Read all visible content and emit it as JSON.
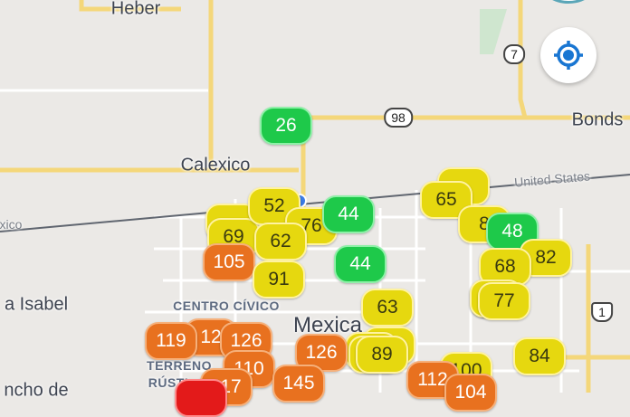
{
  "map": {
    "place_labels": [
      "Heber",
      "Calexico",
      "Bonds",
      "a Isabel",
      "Mexica",
      "TERRENO",
      "RÚSTI",
      "CENTRO CÍVICO",
      "ncho de",
      "xico"
    ],
    "border_label": "United States",
    "route_shields": [
      "7",
      "98",
      "1"
    ]
  },
  "aqi_colors": {
    "good": "#1ec94a",
    "moderate": "#e6d80f",
    "unhealthy_sensitive": "#e8711f",
    "unhealthy": "#e31a1a"
  },
  "markers": [
    {
      "value": "",
      "level": "moderate"
    },
    {
      "value": "",
      "level": "moderate"
    },
    {
      "value": "69",
      "level": "moderate"
    },
    {
      "value": "",
      "level": "moderate"
    },
    {
      "value": "26",
      "level": "good"
    },
    {
      "value": "52",
      "level": "moderate"
    },
    {
      "value": "76",
      "level": "moderate"
    },
    {
      "value": "44",
      "level": "good"
    },
    {
      "value": "62",
      "level": "moderate"
    },
    {
      "value": "105",
      "level": "unhealthy_sensitive"
    },
    {
      "value": "91",
      "level": "moderate"
    },
    {
      "value": "44",
      "level": "good"
    },
    {
      "value": "63",
      "level": "moderate"
    },
    {
      "value": "",
      "level": "moderate"
    },
    {
      "value": "65",
      "level": "moderate"
    },
    {
      "value": "8",
      "level": "moderate"
    },
    {
      "value": "48",
      "level": "good"
    },
    {
      "value": "82",
      "level": "moderate"
    },
    {
      "value": "68",
      "level": "moderate"
    },
    {
      "value": "",
      "level": "moderate"
    },
    {
      "value": "77",
      "level": "moderate"
    },
    {
      "value": "84",
      "level": "moderate"
    },
    {
      "value": "100",
      "level": "moderate"
    },
    {
      "value": "",
      "level": "moderate"
    },
    {
      "value": "",
      "level": "moderate"
    },
    {
      "value": "89",
      "level": "moderate"
    },
    {
      "value": "12",
      "level": "unhealthy_sensitive"
    },
    {
      "value": "119",
      "level": "unhealthy_sensitive"
    },
    {
      "value": "126",
      "level": "unhealthy_sensitive"
    },
    {
      "value": "126",
      "level": "unhealthy_sensitive"
    },
    {
      "value": "110",
      "level": "unhealthy_sensitive"
    },
    {
      "value": "117",
      "level": "unhealthy_sensitive"
    },
    {
      "value": "145",
      "level": "unhealthy_sensitive"
    },
    {
      "value": "112",
      "level": "unhealthy_sensitive"
    },
    {
      "value": "104",
      "level": "unhealthy_sensitive"
    },
    {
      "value": "",
      "level": "unhealthy"
    }
  ],
  "controls": {
    "locate_icon": "crosshair-location-icon",
    "user_location": "blue-dot"
  }
}
